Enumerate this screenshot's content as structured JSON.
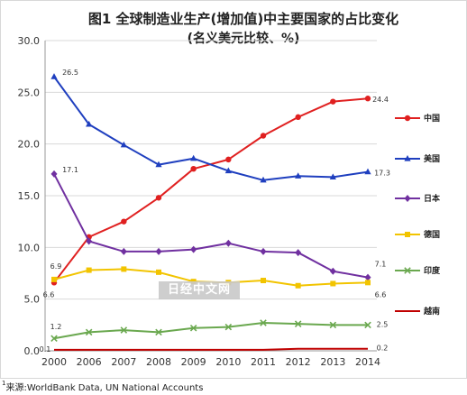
{
  "chart_data": {
    "type": "line",
    "title": "图1 全球制造业生产(增加值)中主要国家的占比变化",
    "subtitle": "(名义美元比较、%)",
    "xlabel": "",
    "ylabel": "",
    "categories": [
      "2000",
      "2006",
      "2007",
      "2008",
      "2009",
      "2010",
      "2011",
      "2012",
      "2013",
      "2014"
    ],
    "ylim": [
      0,
      30
    ],
    "yticks": [
      "0.0",
      "5.0",
      "10.0",
      "15.0",
      "20.0",
      "25.0",
      "30.0"
    ],
    "grid": true,
    "legend_position": "right",
    "series": [
      {
        "name": "中国",
        "color": "#e02020",
        "marker": "circle",
        "values": [
          6.6,
          11.0,
          12.5,
          14.8,
          17.6,
          18.5,
          20.8,
          22.6,
          24.1,
          24.4
        ]
      },
      {
        "name": "美国",
        "color": "#1f3fbf",
        "marker": "triangle",
        "values": [
          26.5,
          21.9,
          19.9,
          18.0,
          18.6,
          17.4,
          16.5,
          16.9,
          16.8,
          17.3
        ]
      },
      {
        "name": "日本",
        "color": "#7030a0",
        "marker": "diamond",
        "values": [
          17.1,
          10.6,
          9.6,
          9.6,
          9.8,
          10.4,
          9.6,
          9.5,
          7.7,
          7.1
        ]
      },
      {
        "name": "德国",
        "color": "#f2c400",
        "marker": "square",
        "values": [
          6.9,
          7.8,
          7.9,
          7.6,
          6.7,
          6.6,
          6.8,
          6.3,
          6.5,
          6.6
        ]
      },
      {
        "name": "印度",
        "color": "#6aa84f",
        "marker": "x",
        "values": [
          1.2,
          1.8,
          2.0,
          1.8,
          2.2,
          2.3,
          2.7,
          2.6,
          2.5,
          2.5
        ]
      },
      {
        "name": "越南",
        "color": "#c00000",
        "marker": "none",
        "values": [
          0.1,
          0.1,
          0.1,
          0.1,
          0.1,
          0.1,
          0.1,
          0.2,
          0.2,
          0.2
        ]
      }
    ],
    "annotations": [
      {
        "series": 0,
        "index": 0,
        "text": "6.6"
      },
      {
        "series": 0,
        "index": 9,
        "text": "24.4"
      },
      {
        "series": 1,
        "index": 0,
        "text": "26.5"
      },
      {
        "series": 1,
        "index": 9,
        "text": "17.3"
      },
      {
        "series": 2,
        "index": 0,
        "text": "17.1"
      },
      {
        "series": 2,
        "index": 9,
        "text": "7.1"
      },
      {
        "series": 3,
        "index": 0,
        "text": "6.9"
      },
      {
        "series": 3,
        "index": 9,
        "text": "6.6"
      },
      {
        "series": 4,
        "index": 0,
        "text": "1.2"
      },
      {
        "series": 4,
        "index": 9,
        "text": "2.5"
      },
      {
        "series": 5,
        "index": 0,
        "text": "0.1"
      },
      {
        "series": 5,
        "index": 9,
        "text": "0.2"
      }
    ]
  },
  "watermark": "日经中文网",
  "source_note": "来源:WorldBank Data, UN National Accounts",
  "footnote_mark": "1"
}
